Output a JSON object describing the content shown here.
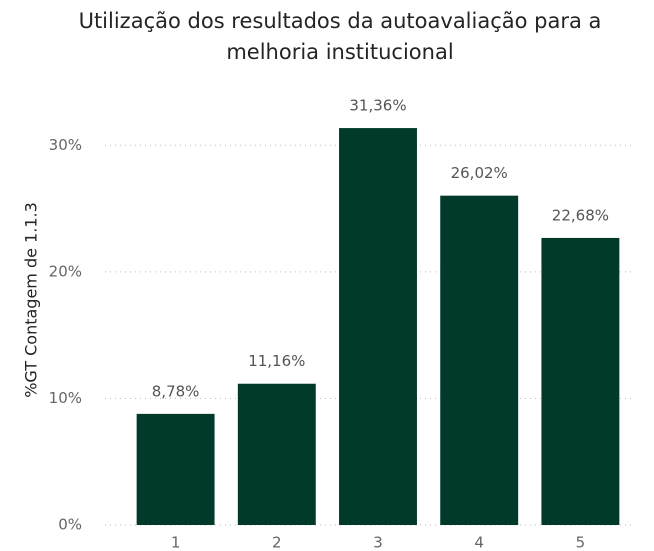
{
  "chart_data": {
    "type": "bar",
    "title": [
      "Utilização dos resultados da autoavaliação para a",
      "melhoria institucional"
    ],
    "y_label": "%GT Contagem de 1.1.3",
    "categories": [
      "1",
      "2",
      "3",
      "4",
      "5"
    ],
    "values": [
      8.78,
      11.16,
      31.36,
      26.02,
      22.68
    ],
    "value_labels": [
      "8,78%",
      "11,16%",
      "31,36%",
      "26,02%",
      "22,68%"
    ],
    "color": "#013a2b",
    "ylim": [
      0,
      35
    ],
    "yticks": [
      {
        "value": 0,
        "label": "0%"
      },
      {
        "value": 10,
        "label": "10%"
      },
      {
        "value": 20,
        "label": "20%"
      },
      {
        "value": 30,
        "label": "30%"
      }
    ],
    "grid": true
  }
}
